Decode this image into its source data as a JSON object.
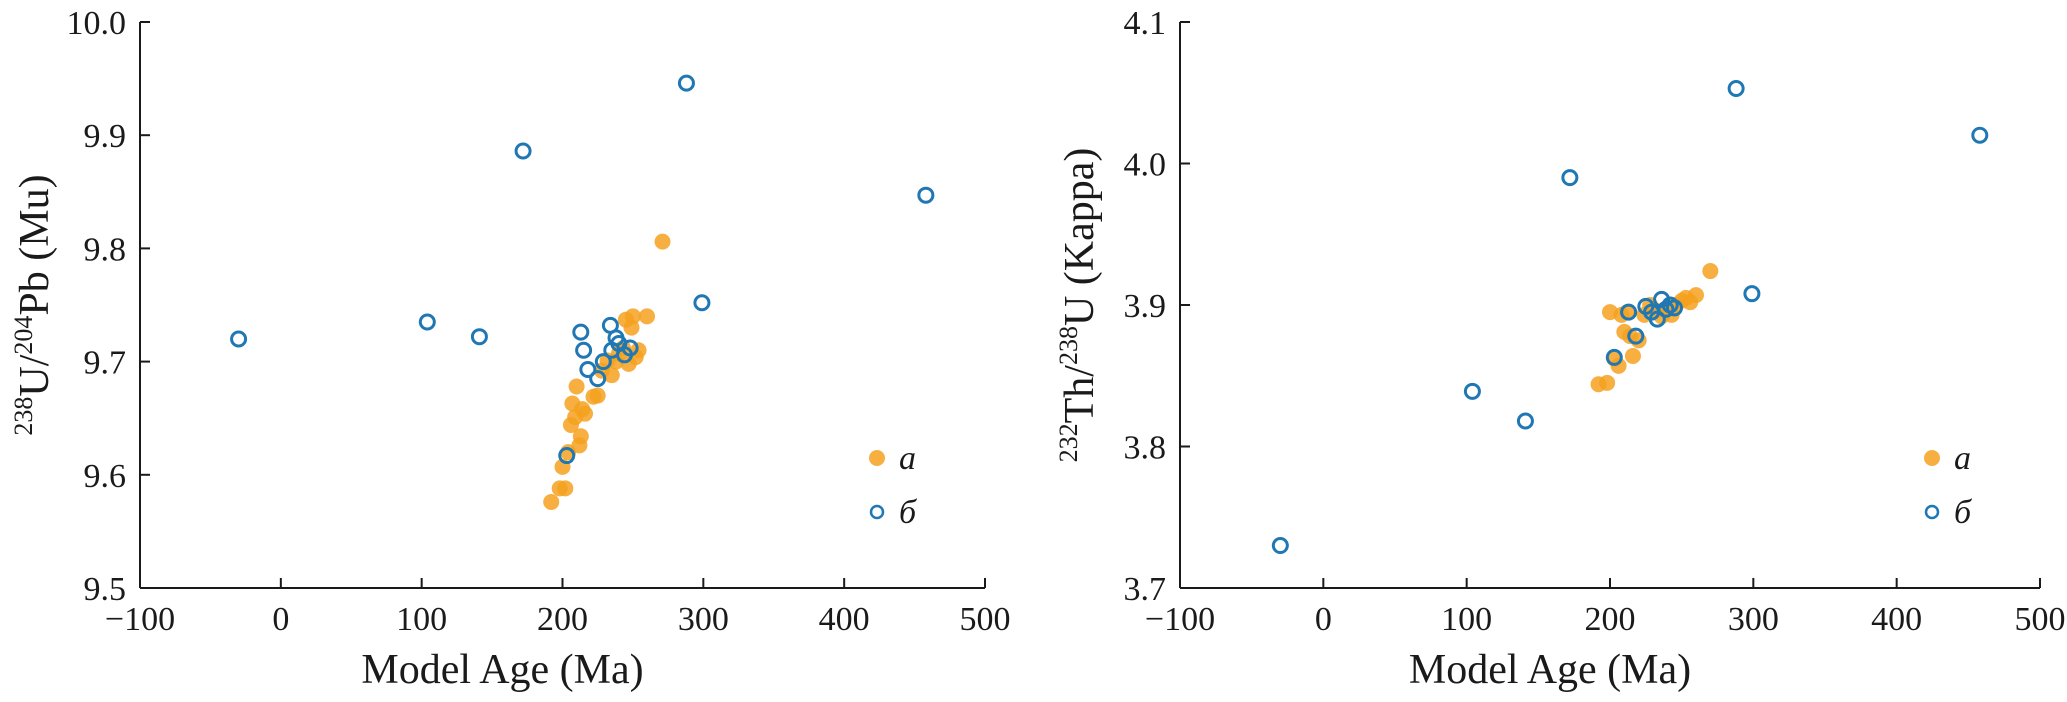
{
  "chart_data": [
    {
      "type": "scatter",
      "title": "",
      "xlabel": "Model Age (Ma)",
      "ylabel": {
        "sup1": "238",
        "text1": "U/",
        "sup2": "204",
        "text2": "Pb (Mu)"
      },
      "xlim": [
        -100,
        500
      ],
      "ylim": [
        9.5,
        10.0
      ],
      "xticks": [
        "−100",
        "0",
        "100",
        "200",
        "300",
        "400",
        "500"
      ],
      "xtick_values": [
        -100,
        0,
        100,
        200,
        300,
        400,
        500
      ],
      "yticks": [
        "9.5",
        "9.6",
        "9.7",
        "9.8",
        "9.9",
        "10.0"
      ],
      "ytick_values": [
        9.5,
        9.6,
        9.7,
        9.8,
        9.9,
        10.0
      ],
      "legend_position": "lower-right",
      "series": [
        {
          "name": "a",
          "marker": "filled-circle",
          "color": "#F5A11F",
          "points": [
            [
              192,
              9.576
            ],
            [
              198,
              9.588
            ],
            [
              200,
              9.607
            ],
            [
              202,
              9.588
            ],
            [
              204,
              9.62
            ],
            [
              206,
              9.644
            ],
            [
              207,
              9.663
            ],
            [
              209,
              9.651
            ],
            [
              210,
              9.678
            ],
            [
              212,
              9.626
            ],
            [
              213,
              9.634
            ],
            [
              214,
              9.658
            ],
            [
              216,
              9.654
            ],
            [
              222,
              9.669
            ],
            [
              225,
              9.67
            ],
            [
              228,
              9.692
            ],
            [
              232,
              9.701
            ],
            [
              235,
              9.688
            ],
            [
              238,
              9.7
            ],
            [
              240,
              9.707
            ],
            [
              243,
              9.712
            ],
            [
              245,
              9.737
            ],
            [
              247,
              9.698
            ],
            [
              249,
              9.73
            ],
            [
              250,
              9.74
            ],
            [
              252,
              9.704
            ],
            [
              254,
              9.71
            ],
            [
              260,
              9.74
            ],
            [
              271,
              9.806
            ]
          ]
        },
        {
          "name": "б",
          "marker": "open-circle",
          "color": "#1F77B4",
          "points": [
            [
              -30,
              9.72
            ],
            [
              104,
              9.735
            ],
            [
              141,
              9.722
            ],
            [
              172,
              9.886
            ],
            [
              203,
              9.617
            ],
            [
              213,
              9.726
            ],
            [
              215,
              9.71
            ],
            [
              218,
              9.693
            ],
            [
              225,
              9.685
            ],
            [
              229,
              9.7
            ],
            [
              234,
              9.732
            ],
            [
              235,
              9.71
            ],
            [
              238,
              9.721
            ],
            [
              240,
              9.716
            ],
            [
              244,
              9.706
            ],
            [
              248,
              9.712
            ],
            [
              288,
              9.946
            ],
            [
              299,
              9.752
            ],
            [
              458,
              9.847
            ]
          ]
        }
      ]
    },
    {
      "type": "scatter",
      "title": "",
      "xlabel": "Model Age (Ma)",
      "ylabel": {
        "sup1": "232",
        "text1": "Th/",
        "sup2": "238",
        "text2": "U (Kappa)"
      },
      "xlim": [
        -100,
        500
      ],
      "ylim": [
        3.7,
        4.1
      ],
      "xticks": [
        "−100",
        "0",
        "100",
        "200",
        "300",
        "400",
        "500"
      ],
      "xtick_values": [
        -100,
        0,
        100,
        200,
        300,
        400,
        500
      ],
      "yticks": [
        "3.7",
        "3.8",
        "3.9",
        "4.0",
        "4.1"
      ],
      "ytick_values": [
        3.7,
        3.8,
        3.9,
        4.0,
        4.1
      ],
      "legend_position": "lower-right",
      "series": [
        {
          "name": "a",
          "marker": "filled-circle",
          "color": "#F5A11F",
          "points": [
            [
              192,
              3.844
            ],
            [
              198,
              3.845
            ],
            [
              200,
              3.895
            ],
            [
              203,
              3.862
            ],
            [
              206,
              3.857
            ],
            [
              208,
              3.893
            ],
            [
              210,
              3.881
            ],
            [
              212,
              3.895
            ],
            [
              214,
              3.878
            ],
            [
              216,
              3.864
            ],
            [
              220,
              3.875
            ],
            [
              224,
              3.893
            ],
            [
              228,
              3.9
            ],
            [
              232,
              3.896
            ],
            [
              236,
              3.892
            ],
            [
              240,
              3.898
            ],
            [
              243,
              3.893
            ],
            [
              246,
              3.9
            ],
            [
              250,
              3.903
            ],
            [
              253,
              3.905
            ],
            [
              256,
              3.902
            ],
            [
              260,
              3.907
            ],
            [
              270,
              3.924
            ]
          ]
        },
        {
          "name": "б",
          "marker": "open-circle",
          "color": "#1F77B4",
          "points": [
            [
              -30,
              3.73
            ],
            [
              104,
              3.839
            ],
            [
              141,
              3.818
            ],
            [
              172,
              3.99
            ],
            [
              203,
              3.863
            ],
            [
              213,
              3.895
            ],
            [
              218,
              3.878
            ],
            [
              225,
              3.899
            ],
            [
              229,
              3.895
            ],
            [
              233,
              3.89
            ],
            [
              236,
              3.904
            ],
            [
              239,
              3.897
            ],
            [
              242,
              3.9
            ],
            [
              245,
              3.898
            ],
            [
              288,
              4.053
            ],
            [
              299,
              3.908
            ],
            [
              458,
              4.02
            ]
          ]
        }
      ]
    }
  ]
}
